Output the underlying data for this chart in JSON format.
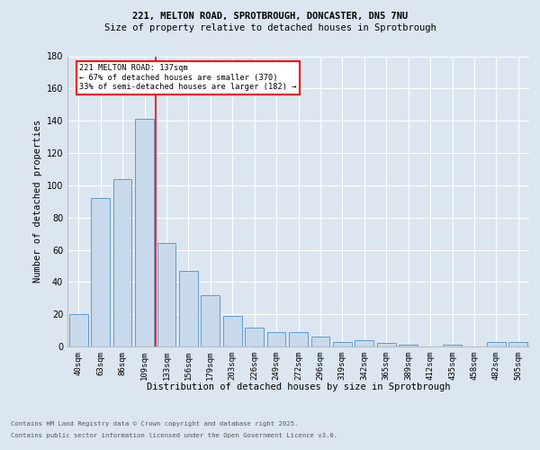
{
  "title1": "221, MELTON ROAD, SPROTBROUGH, DONCASTER, DN5 7NU",
  "title2": "Size of property relative to detached houses in Sprotbrough",
  "xlabel": "Distribution of detached houses by size in Sprotbrough",
  "ylabel": "Number of detached properties",
  "bar_color": "#c9d9ec",
  "bar_edge_color": "#5b9bd5",
  "background_color": "#dce6f1",
  "plot_bg_color": "#dce6f1",
  "grid_color": "#ffffff",
  "categories": [
    "40sqm",
    "63sqm",
    "86sqm",
    "109sqm",
    "133sqm",
    "156sqm",
    "179sqm",
    "203sqm",
    "226sqm",
    "249sqm",
    "272sqm",
    "296sqm",
    "319sqm",
    "342sqm",
    "365sqm",
    "389sqm",
    "412sqm",
    "435sqm",
    "458sqm",
    "482sqm",
    "505sqm"
  ],
  "values": [
    20,
    92,
    104,
    141,
    64,
    47,
    32,
    19,
    12,
    9,
    9,
    6,
    3,
    4,
    2,
    1,
    0,
    1,
    0,
    3,
    3
  ],
  "red_line_x": 3.5,
  "annotation_line1": "221 MELTON ROAD: 137sqm",
  "annotation_line2": "← 67% of detached houses are smaller (370)",
  "annotation_line3": "33% of semi-detached houses are larger (182) →",
  "ylim": [
    0,
    180
  ],
  "yticks": [
    0,
    20,
    40,
    60,
    80,
    100,
    120,
    140,
    160,
    180
  ],
  "footer1": "Contains HM Land Registry data © Crown copyright and database right 2025.",
  "footer2": "Contains public sector information licensed under the Open Government Licence v3.0."
}
